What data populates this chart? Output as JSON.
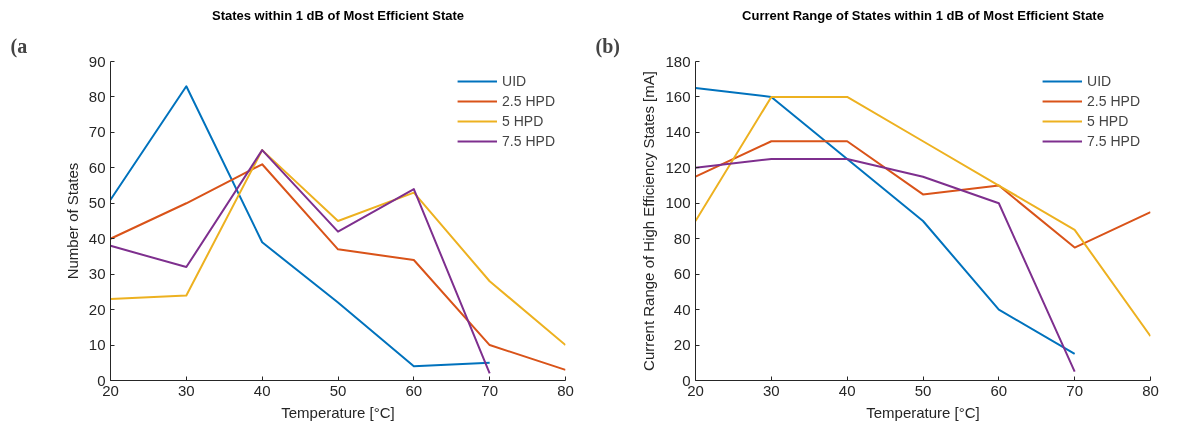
{
  "chart_data": [
    {
      "type": "line",
      "title": "States within 1 dB of Most Efficient State",
      "xlabel": "Temperature [°C]",
      "ylabel": "Number of States",
      "annotations": [
        "(a"
      ],
      "x": [
        20,
        30,
        40,
        50,
        60,
        70,
        80
      ],
      "xlim": [
        20,
        80
      ],
      "xticks": [
        20,
        30,
        40,
        50,
        60,
        70,
        80
      ],
      "ylim": [
        0,
        90
      ],
      "yticks": [
        0,
        10,
        20,
        30,
        40,
        50,
        60,
        70,
        80,
        90
      ],
      "grid": false,
      "legend": "top right",
      "marker": "none",
      "line_style": "solid",
      "series": [
        {
          "name": "UID",
          "color": "#0072bd",
          "values": [
            51,
            83,
            39,
            22,
            4,
            5,
            null
          ]
        },
        {
          "name": "2.5 HPD",
          "color": "#d95319",
          "values": [
            40,
            50,
            61,
            37,
            34,
            10,
            3
          ]
        },
        {
          "name": "5 HPD",
          "color": "#edb120",
          "values": [
            23,
            24,
            65,
            45,
            53,
            28,
            10
          ]
        },
        {
          "name": "7.5 HPD",
          "color": "#7e2f8e",
          "values": [
            38,
            32,
            65,
            42,
            54,
            2,
            null
          ]
        }
      ]
    },
    {
      "type": "line",
      "title": "Current Range of States within 1 dB of Most Efficient State",
      "xlabel": "Temperature [°C]",
      "ylabel": "Current Range of High Efficiency States [mA]",
      "annotations": [
        "(b)"
      ],
      "x": [
        20,
        30,
        40,
        50,
        60,
        70,
        80
      ],
      "xlim": [
        20,
        80
      ],
      "xticks": [
        20,
        30,
        40,
        50,
        60,
        70,
        80
      ],
      "ylim": [
        0,
        180
      ],
      "yticks": [
        0,
        20,
        40,
        60,
        80,
        100,
        120,
        140,
        160,
        180
      ],
      "grid": false,
      "legend": "top right",
      "marker": "none",
      "line_style": "solid",
      "series": [
        {
          "name": "UID",
          "color": "#0072bd",
          "values": [
            165,
            160,
            125,
            90,
            40,
            15,
            null
          ]
        },
        {
          "name": "2.5 HPD",
          "color": "#d95319",
          "values": [
            115,
            135,
            135,
            105,
            110,
            75,
            95
          ]
        },
        {
          "name": "5 HPD",
          "color": "#edb120",
          "values": [
            90,
            160,
            160,
            135,
            110,
            85,
            25
          ]
        },
        {
          "name": "7.5 HPD",
          "color": "#7e2f8e",
          "values": [
            120,
            125,
            125,
            115,
            100,
            5,
            null
          ]
        }
      ]
    }
  ]
}
